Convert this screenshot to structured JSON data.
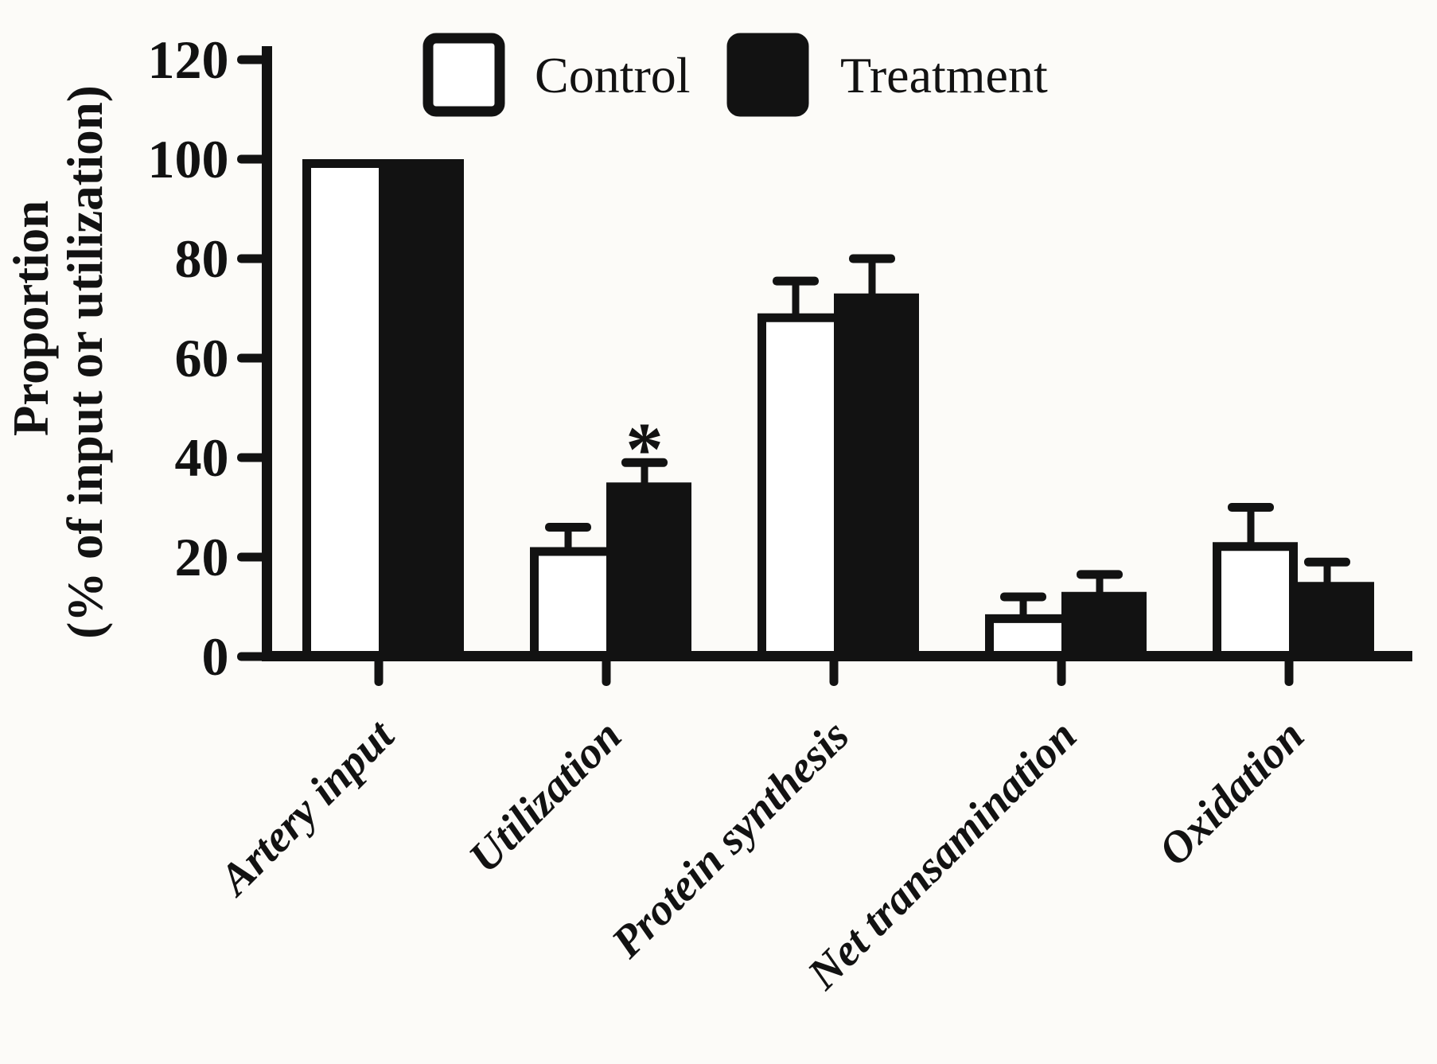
{
  "figure": {
    "background": "#fcfbf8",
    "ink": "#121212"
  },
  "legend": {
    "items": [
      {
        "label": "Control",
        "fill": "#ffffff"
      },
      {
        "label": "Treatment",
        "fill": "#121212"
      }
    ]
  },
  "y_axis": {
    "title_line1": "Proportion",
    "title_line2": "(% of input or utilization)",
    "tick_labels": [
      "0",
      "20",
      "40",
      "60",
      "80",
      "100",
      "120"
    ]
  },
  "chart_data": {
    "type": "bar",
    "title": "",
    "xlabel": "",
    "ylabel": "Proportion (% of input or utilization)",
    "ylim": [
      0,
      120
    ],
    "ytick_step": 20,
    "grid": false,
    "legend_position": "top",
    "categories": [
      "Artery input",
      "Utilization",
      "Protein synthesis",
      "Net transamination",
      "Oxidation"
    ],
    "series": [
      {
        "name": "Control",
        "fill": "#ffffff",
        "values": [
          100,
          22,
          69,
          8.5,
          23
        ],
        "errors_plus": [
          0,
          4,
          6.5,
          3.5,
          7
        ]
      },
      {
        "name": "Treatment",
        "fill": "#121212",
        "values": [
          100,
          35,
          73,
          13,
          15
        ],
        "errors_plus": [
          0,
          4,
          7,
          3.5,
          4
        ]
      }
    ],
    "annotations": [
      {
        "text": "*",
        "category": "Utilization",
        "series": "Treatment"
      }
    ]
  }
}
